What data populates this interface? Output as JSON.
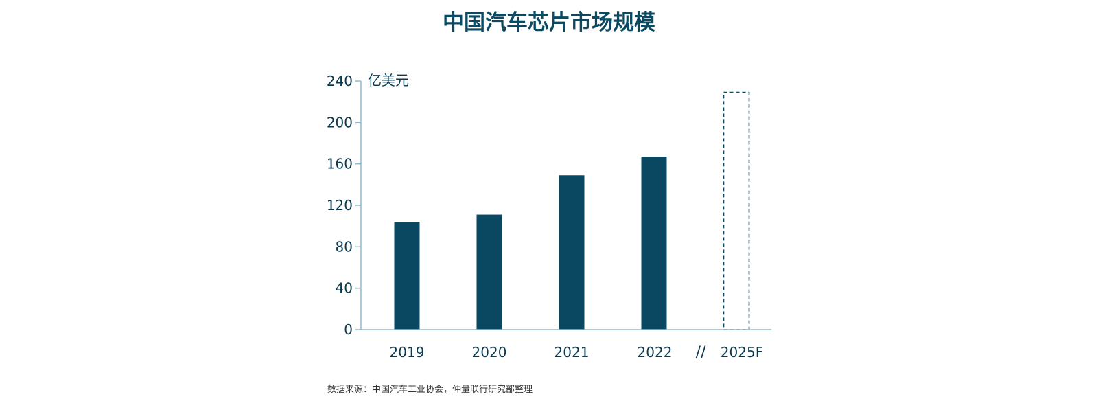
{
  "chart_data": {
    "type": "bar",
    "title": "中国汽车芯片市场规模",
    "unit_label": "亿美元",
    "categories": [
      "2019",
      "2020",
      "2021",
      "2022",
      "2025F"
    ],
    "values": [
      104,
      111,
      149,
      167,
      229
    ],
    "forecast_categories": [
      "2025F"
    ],
    "axis_break_symbol": "//",
    "ylim": [
      0,
      240
    ],
    "yticks": [
      0,
      40,
      80,
      120,
      160,
      200,
      240
    ],
    "grid": false,
    "source": "数据来源：中国汽车工业协会，仲量联行研究部整理",
    "colors": {
      "bar": "#0a4760",
      "forecast_border": "#0a4760",
      "axis": "#8bbccb",
      "title": "#0b4a62",
      "text": "#0b3a50"
    }
  }
}
